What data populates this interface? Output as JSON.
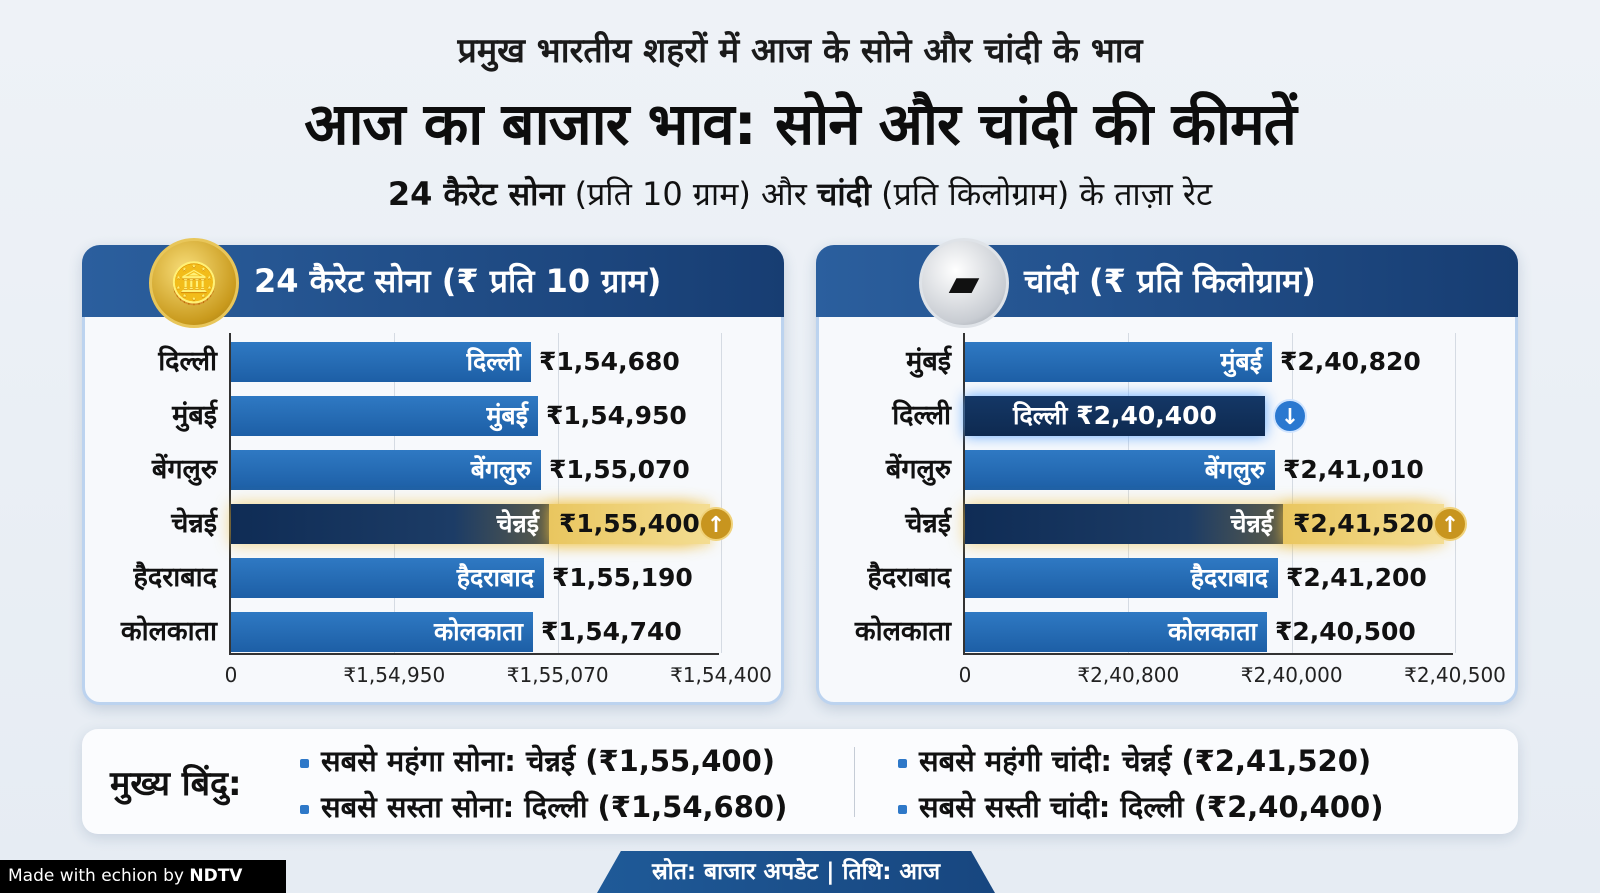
{
  "header": {
    "title_top": "प्रमुख भारतीय शहरों में आज के सोने और चांदी के भाव",
    "title_main": "आज का बाजार भाव: सोने और चांदी की कीमतें",
    "subtitle_part1": "24 कैरेट सोना",
    "subtitle_part2": " (प्रति 10 ग्राम) और ",
    "subtitle_part3": "चांदी",
    "subtitle_part4": " (प्रति किलोग्राम) के ताज़ा रेट"
  },
  "chart_data": [
    {
      "type": "bar",
      "orientation": "horizontal",
      "title": "24 कैरेट सोना (₹ प्रति 10 ग्राम)",
      "icon": "gold-coins-icon",
      "categories": [
        "दिल्ली",
        "मुंबई",
        "बेंगलुरु",
        "चेन्नई",
        "हैदराबाद",
        "कोलकाता"
      ],
      "values": [
        154680,
        154950,
        155070,
        155400,
        155190,
        154740
      ],
      "value_labels": [
        "₹1,54,680",
        "₹1,54,950",
        "₹1,55,070",
        "₹1,55,400",
        "₹1,55,190",
        "₹1,54,740"
      ],
      "highlight": [
        "",
        "",
        "",
        "max",
        "",
        ""
      ],
      "x_tick_labels": [
        "0",
        "₹1,54,950",
        "₹1,55,070",
        "₹1,54,400"
      ],
      "xlabel": "",
      "ylabel": "",
      "colors": {
        "bar": "#2370b8",
        "max": "#e9c65f"
      }
    },
    {
      "type": "bar",
      "orientation": "horizontal",
      "title": "चांदी (₹ प्रति किलोग्राम)",
      "icon": "silver-bars-icon",
      "categories": [
        "मुंबई",
        "दिल्ली",
        "बेंगलुरु",
        "चेन्नई",
        "हैदराबाद",
        "कोलकाता"
      ],
      "values": [
        240820,
        240400,
        241010,
        241520,
        241200,
        240500
      ],
      "value_labels": [
        "₹2,40,820",
        "₹2,40,400",
        "₹2,41,010",
        "₹2,41,520",
        "₹2,41,200",
        "₹2,40,500"
      ],
      "highlight": [
        "",
        "min",
        "",
        "max",
        "",
        ""
      ],
      "x_tick_labels": [
        "0",
        "₹2,40,800",
        "₹2,40,000",
        "₹2,40,500"
      ],
      "xlabel": "",
      "ylabel": "",
      "colors": {
        "bar": "#2370b8",
        "min": "#143766",
        "max": "#e9c65f"
      }
    }
  ],
  "key_points": {
    "label": "मुख्य बिंदु:",
    "items": [
      "सबसे महंगा सोना: चेन्नई (₹1,55,400)",
      "सबसे सस्ता सोना: दिल्ली (₹1,54,680)",
      "सबसे महंगी चांदी: चेन्नई (₹2,41,520)",
      "सबसे सस्ती चांदी: दिल्ली (₹2,40,400)"
    ]
  },
  "footer": {
    "source": "स्रोत: बाजार अपडेट | तिथि: आज"
  },
  "watermark": {
    "prefix": "Made with ",
    "brand": "echion",
    "by": " by ",
    "org": "NDTV"
  }
}
